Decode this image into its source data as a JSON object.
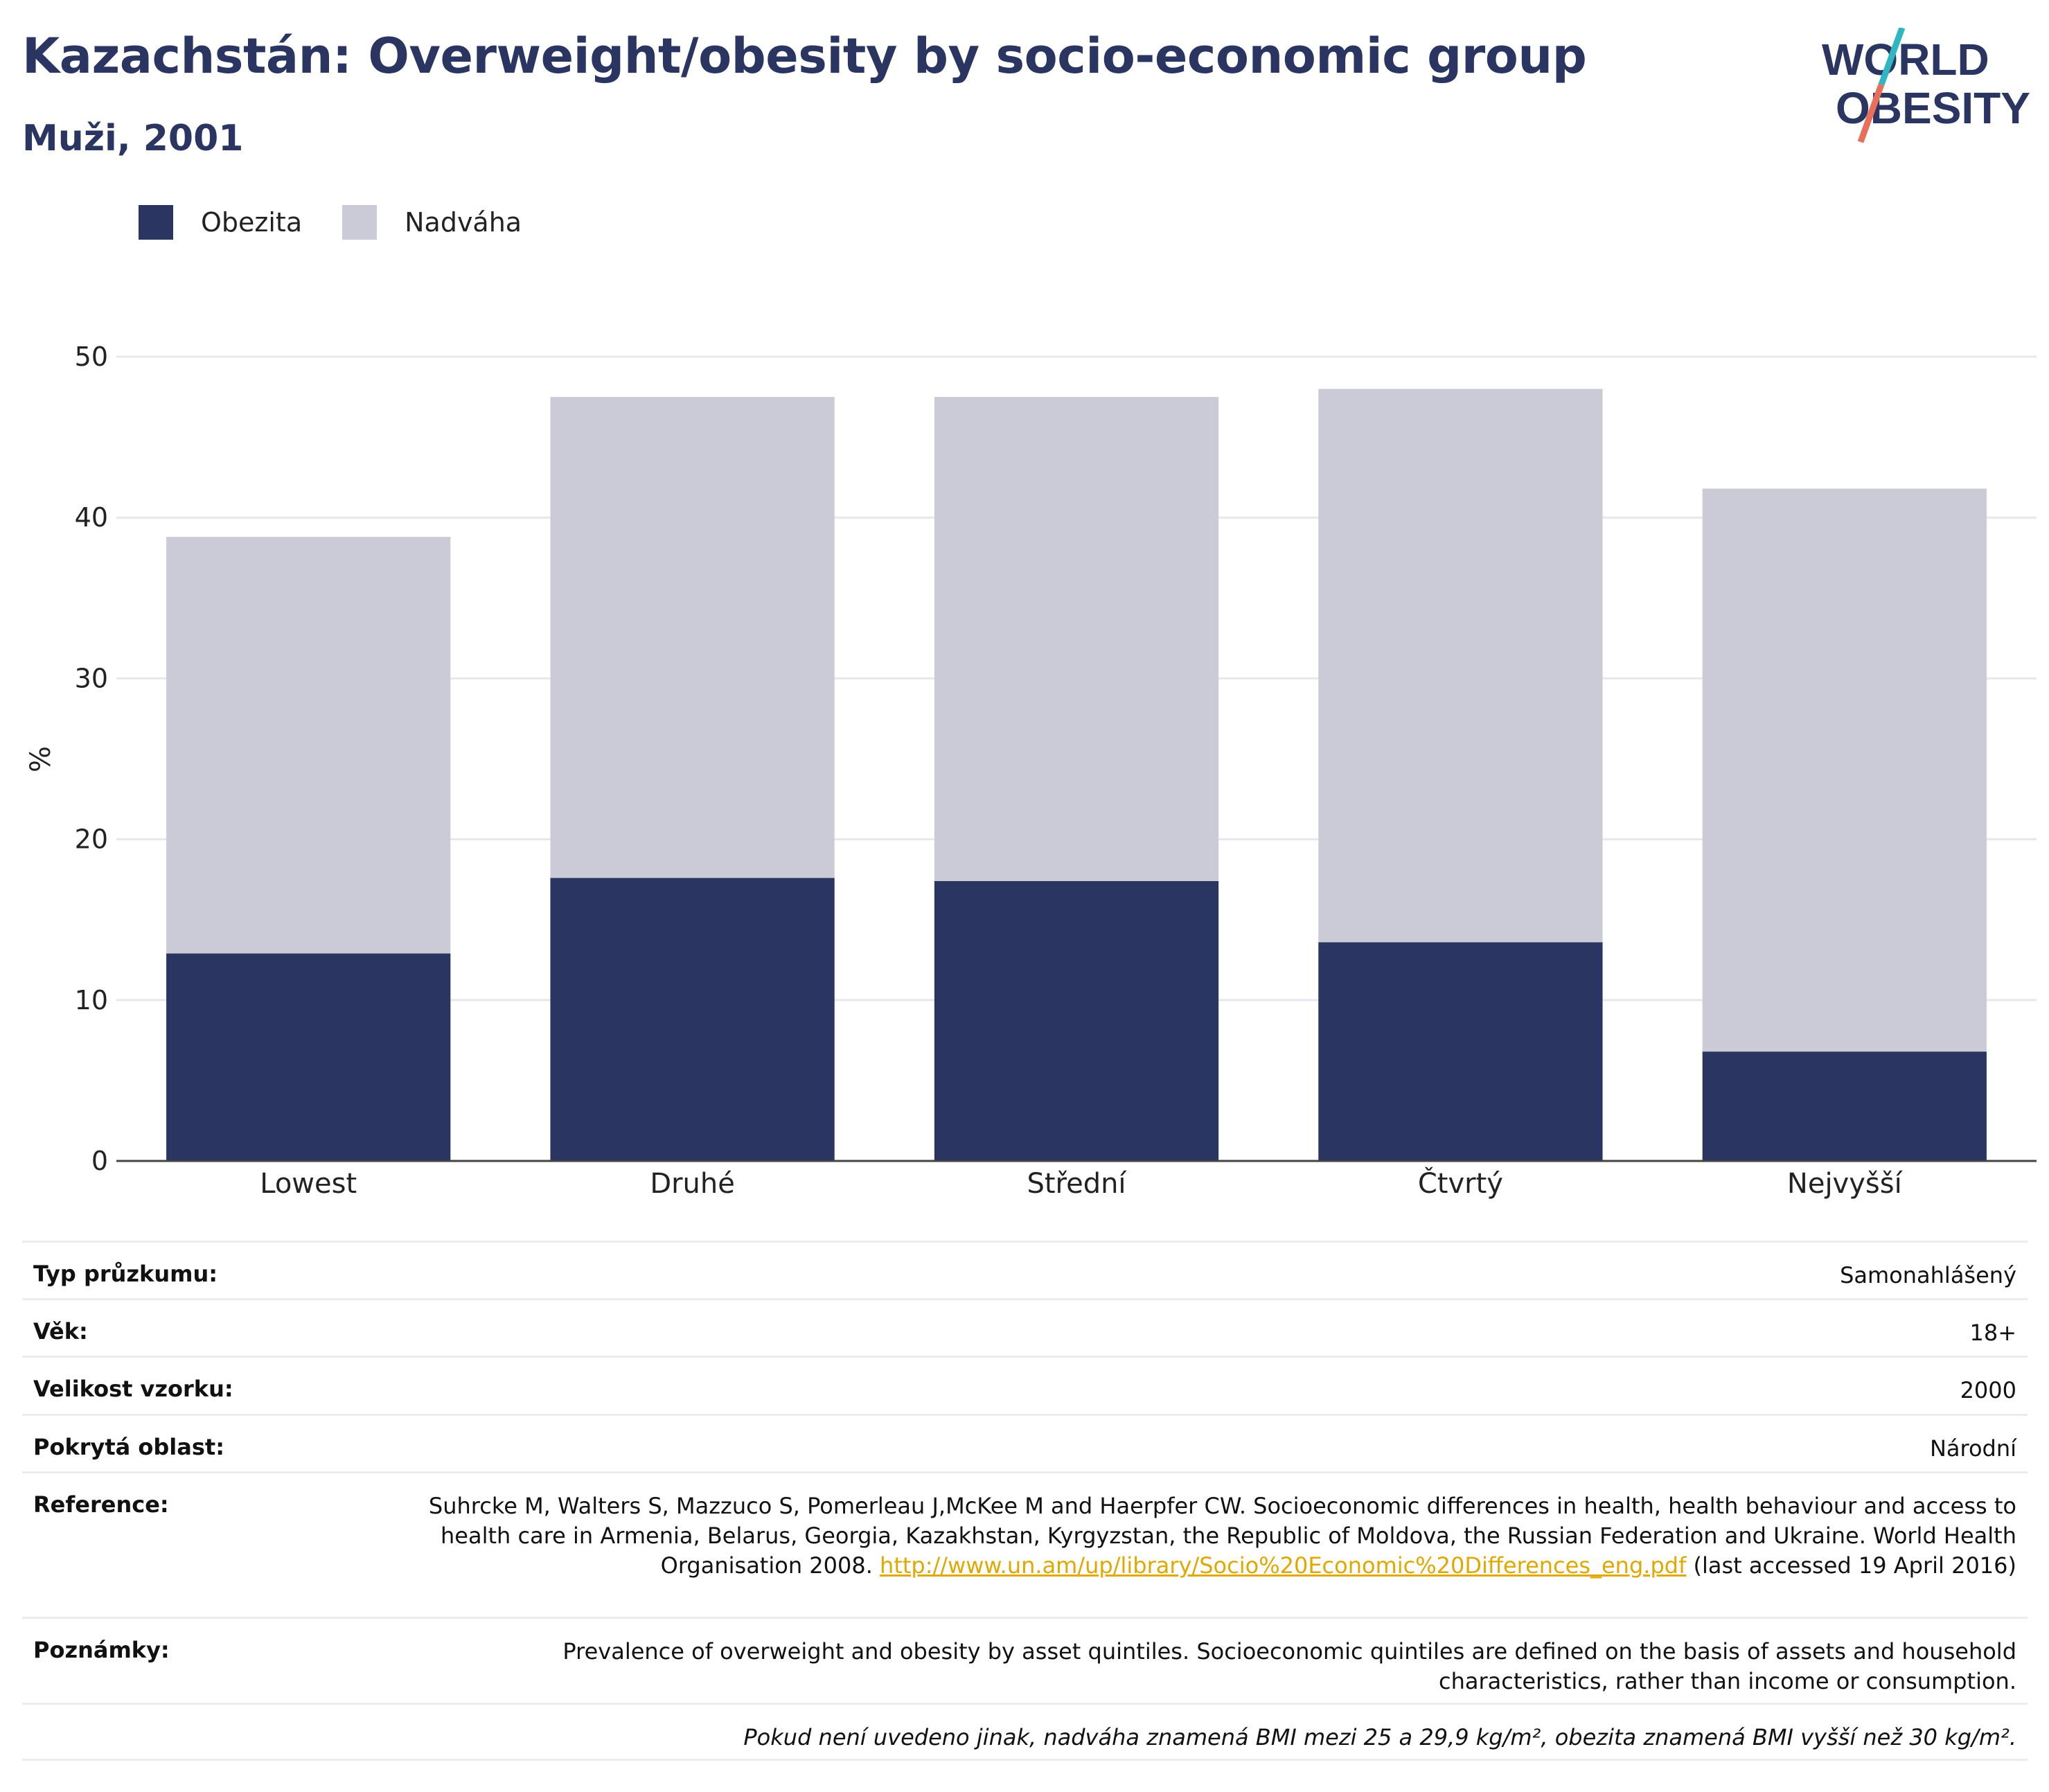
{
  "header": {
    "title": "Kazachstán: Overweight/obesity by socio-economic group",
    "subtitle": "Muži, 2001"
  },
  "logo": {
    "line1": "WORLD",
    "line2": "OBESITY"
  },
  "colors": {
    "obezita": "#2a3561",
    "nadvaha": "#cacbd7",
    "accent_teal": "#2fb6c2",
    "accent_red": "#e8705a",
    "link": "#e0a800"
  },
  "chart_data": {
    "type": "bar",
    "stacked": true,
    "categories": [
      "Lowest",
      "Druhé",
      "Střední",
      "Čtvrtý",
      "Nejvyšší"
    ],
    "series": [
      {
        "name": "Obezita",
        "values": [
          12.9,
          17.6,
          17.4,
          13.6,
          6.8
        ]
      },
      {
        "name": "Nadváha",
        "values": [
          25.9,
          29.9,
          30.1,
          34.4,
          35.0
        ]
      }
    ],
    "ylabel": "%",
    "ylim": [
      0,
      50
    ],
    "yticks": [
      0,
      10,
      20,
      30,
      40,
      50
    ],
    "grid": true,
    "legend": "top-left"
  },
  "table": {
    "rows": [
      {
        "key": "Typ průzkumu:",
        "value": "Samonahlášený"
      },
      {
        "key": "Věk:",
        "value": "18+"
      },
      {
        "key": "Velikost vzorku:",
        "value": "2000"
      },
      {
        "key": "Pokrytá oblast:",
        "value": "Národní"
      }
    ],
    "reference_key": "Reference:",
    "reference_text": "Suhrcke M, Walters S, Mazzuco S, Pomerleau J,McKee M and Haerpfer CW. Socioeconomic differences in health, health behaviour and access to health care in Armenia, Belarus, Georgia, Kazakhstan, Kyrgyzstan, the Republic of Moldova, the Russian Federation and Ukraine. World Health Organisation 2008.",
    "reference_link": "http://www.un.am/up/library/Socio%20Economic%20Differences_eng.pdf",
    "reference_tail": "(last accessed 19 April 2016)",
    "notes_key": "Poznámky:",
    "notes_text": "Prevalence of overweight and obesity by asset quintiles. Socioeconomic quintiles are defined on the basis of assets and household characteristics, rather than income or consumption.",
    "footnote": "Pokud není uvedeno jinak, nadváha znamená BMI mezi 25 a 29,9 kg/m², obezita znamená BMI vyšší než 30 kg/m²."
  }
}
